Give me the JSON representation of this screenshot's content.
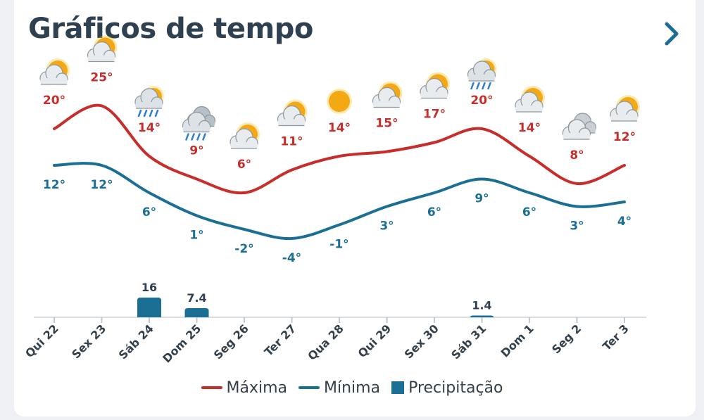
{
  "header": {
    "title": "Gráficos de tempo",
    "more_icon": "chevron-right-icon"
  },
  "colors": {
    "max": "#c62d2b",
    "min": "#1b6f95",
    "precip": "#1b6f95",
    "title": "#2f4051"
  },
  "chart_data": {
    "type": "line",
    "categories": [
      "Qui 22",
      "Sex 23",
      "Sáb 24",
      "Dom 25",
      "Seg 26",
      "Ter 27",
      "Qua 28",
      "Qui 29",
      "Sex 30",
      "Sáb 31",
      "Dom 1",
      "Seg 2",
      "Ter 3"
    ],
    "icons": [
      "sun-cloud-icon",
      "sun-cloud-icon",
      "rain-sun-icon",
      "rain-cloud-icon",
      "sun-cloud-icon",
      "sun-cloud-icon",
      "sun-icon",
      "sun-cloud-icon",
      "sun-cloud-icon",
      "rain-sun-icon",
      "sun-cloud-icon",
      "cloud-icon",
      "sun-cloud-icon"
    ],
    "series": [
      {
        "name": "Máxima",
        "values": [
          20,
          25,
          14,
          9,
          6,
          11,
          14,
          15,
          17,
          20,
          14,
          8,
          12
        ],
        "labels": [
          "20°",
          "25°",
          "14°",
          "9°",
          "6°",
          "11°",
          "14°",
          "15°",
          "17°",
          "20°",
          "14°",
          "8°",
          "12°"
        ]
      },
      {
        "name": "Mínima",
        "values": [
          12,
          12,
          6,
          1,
          -2,
          -4,
          -1,
          3,
          6,
          9,
          6,
          3,
          4
        ],
        "labels": [
          "12°",
          "12°",
          "6°",
          "1°",
          "-2°",
          "-4°",
          "-1°",
          "3°",
          "6°",
          "9°",
          "6°",
          "3°",
          "4°"
        ]
      },
      {
        "name": "Precipitação",
        "type": "bar",
        "values": [
          0,
          0,
          16,
          7.4,
          0,
          0,
          0,
          0,
          0,
          1.4,
          0,
          0,
          0
        ],
        "labels": [
          "",
          "",
          "16",
          "7.4",
          "",
          "",
          "",
          "",
          "",
          "1.4",
          "",
          "",
          ""
        ]
      }
    ]
  },
  "legend": [
    "Máxima",
    "Mínima",
    "Precipitação"
  ]
}
